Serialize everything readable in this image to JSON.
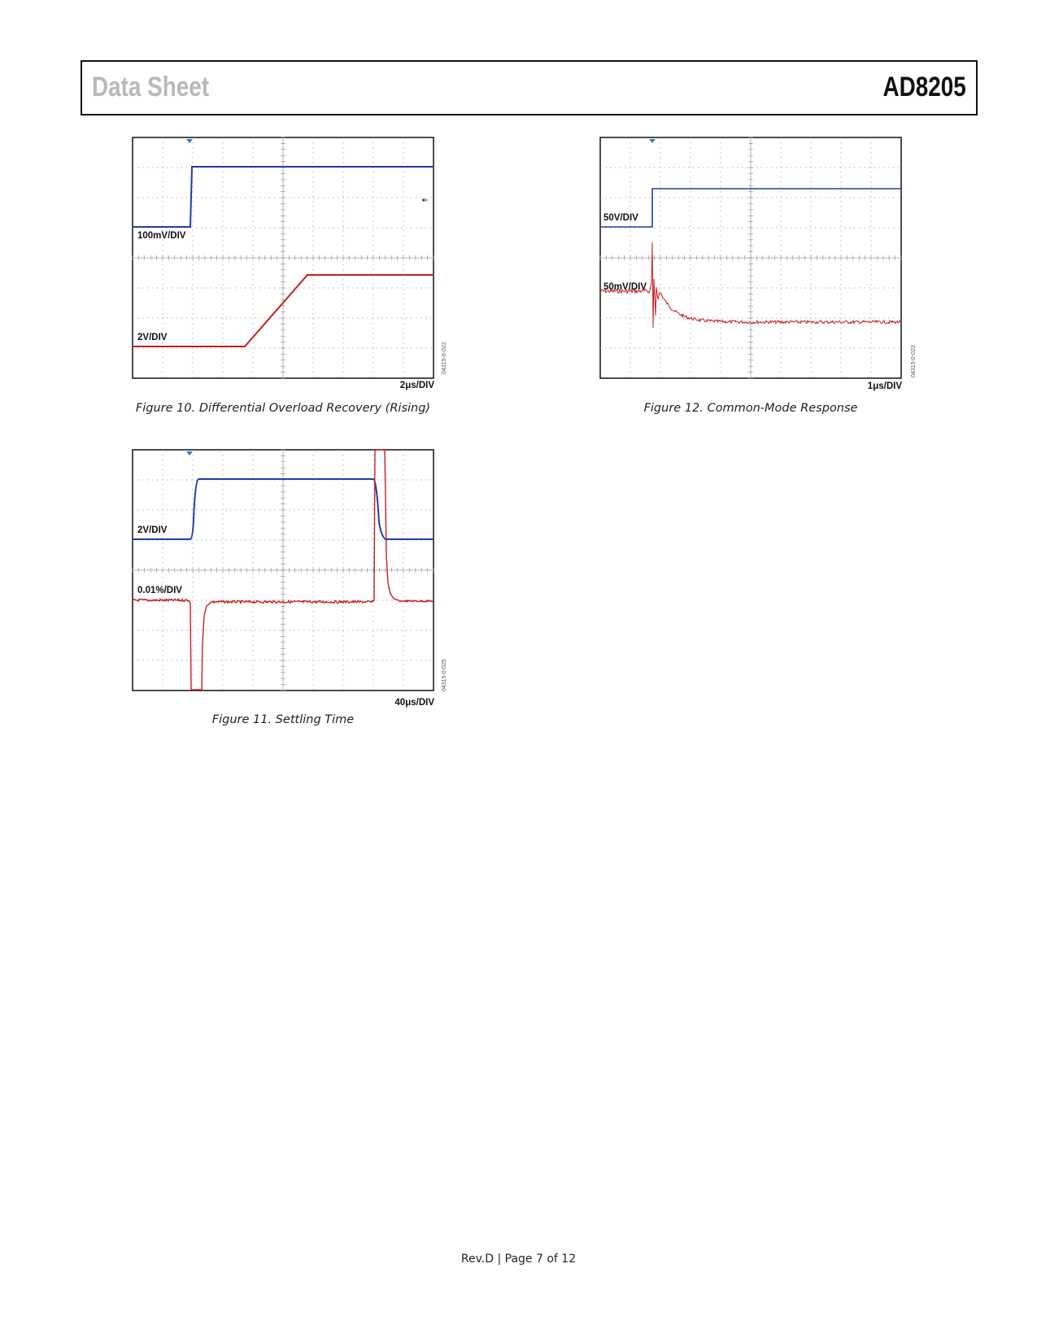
{
  "header": {
    "left": "Data Sheet",
    "right": "AD8205"
  },
  "figures": [
    {
      "caption": "Figure 10. Differential Overload Recovery (Rising)",
      "ch1_label": "100mV/DIV",
      "ch2_label": "2V/DIV",
      "timebase": "2μs/DIV",
      "side_id": "04315-0-022"
    },
    {
      "caption": "Figure 11. Settling Time",
      "ch1_label": "2V/DIV",
      "ch2_label": "0.01%/DIV",
      "timebase": "40μs/DIV",
      "side_id": "04315-0-025"
    },
    {
      "caption": "Figure 12. Common-Mode Response",
      "ch1_label": "50V/DIV",
      "ch2_label": "50mV/DIV",
      "timebase": "1μs/DIV",
      "side_id": "04315-0-023"
    }
  ],
  "colors": {
    "ch1": "#1f3fa8",
    "ch2": "#c62020",
    "trigger": "#2b7fc4",
    "grid": "#9a9a9a"
  },
  "footer": "Rev.D | Page 7 of 12"
}
